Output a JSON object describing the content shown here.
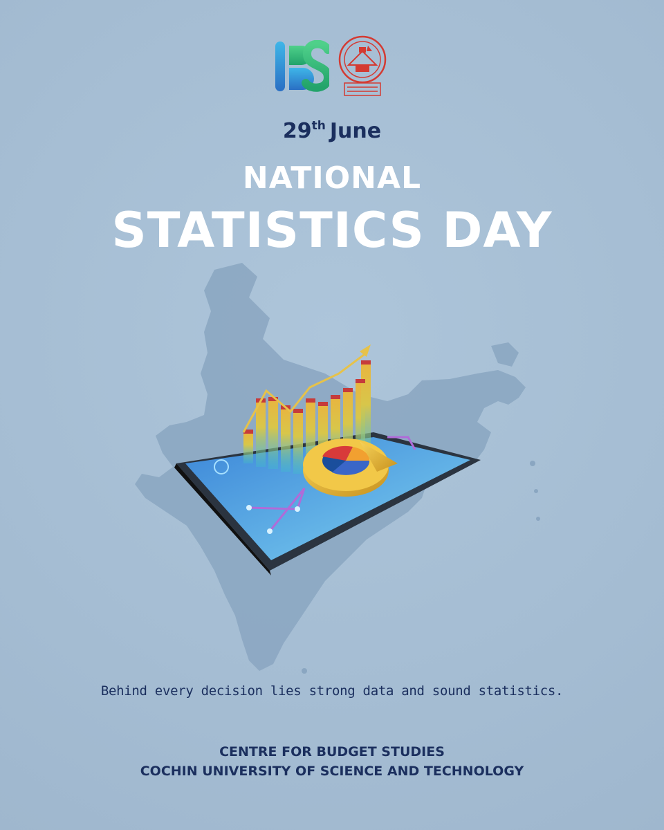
{
  "header": {
    "cbs_logo_icon": "cbs-logo",
    "university_seal_icon": "cusat-seal",
    "seal_text": "COCHIN UNIVERSITY OF SCIENCE AND TECHNOLOGY"
  },
  "event": {
    "day": "29",
    "day_suffix": "th",
    "month": "June",
    "title_line1": "NATIONAL",
    "title_line2": "STATISTICS DAY"
  },
  "tagline": "Behind every decision lies strong data and sound statistics.",
  "footer": {
    "line1": "CENTRE FOR BUDGET STUDIES",
    "line2": "COCHIN UNIVERSITY OF SCIENCE AND TECHNOLOGY"
  },
  "colors": {
    "background": "#a8c0d6",
    "text_dark": "#1b2f5e",
    "text_light": "#ffffff",
    "map": "#8aa5c0",
    "seal_red": "#d43a32",
    "logo_blue": "#2a8bd1",
    "logo_green": "#3ec07a"
  }
}
